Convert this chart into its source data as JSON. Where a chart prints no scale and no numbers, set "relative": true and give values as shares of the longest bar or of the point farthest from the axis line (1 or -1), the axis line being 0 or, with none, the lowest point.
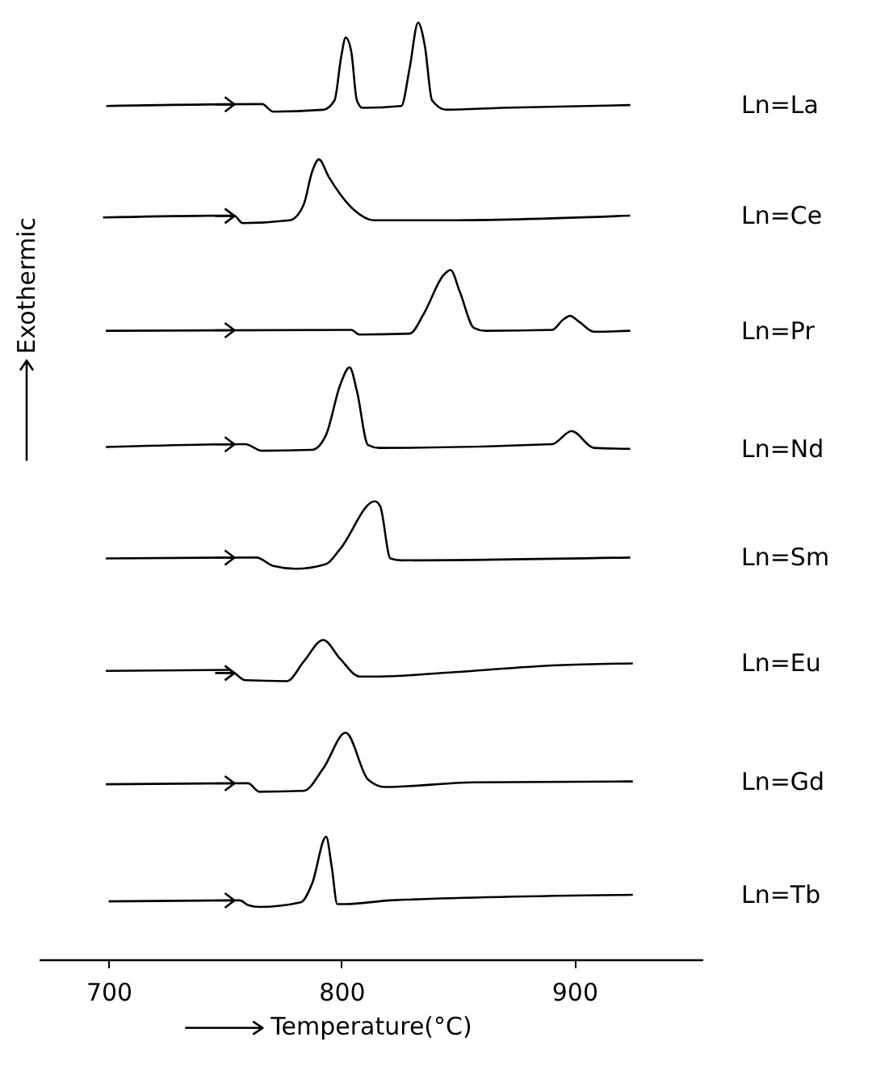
{
  "chart_data": {
    "type": "line",
    "relative": true,
    "xlabel": "Temperature(°C)",
    "ylabel": "Exothermic",
    "xlim": [
      670,
      955
    ],
    "xticks": [
      700,
      800,
      900
    ],
    "grid": false,
    "series": [
      {
        "name": "Ln=La",
        "color": "#000000",
        "x": [
          699,
          765.9,
          770.7,
          792.2,
          797,
          799.9,
          801.8,
          804.2,
          806.6,
          809,
          825.7,
          829.3,
          832.9,
          835.8,
          838.9,
          844.9,
          868.9,
          924
        ],
        "values": [
          0.911,
          0.913,
          0.905,
          0.907,
          0.917,
          0.964,
          0.984,
          0.969,
          0.917,
          0.909,
          0.911,
          0.952,
          1.0,
          0.975,
          0.917,
          0.907,
          0.909,
          0.912
        ]
      },
      {
        "name": "Ln=Ce",
        "color": "#000000",
        "x": [
          697.6,
          753.9,
          757.5,
          777.8,
          783.8,
          787.4,
          790.3,
          794.6,
          805.4,
          813.8,
          844.9,
          924
        ],
        "values": [
          0.792,
          0.794,
          0.786,
          0.789,
          0.806,
          0.841,
          0.854,
          0.835,
          0.8,
          0.789,
          0.789,
          0.794
        ]
      },
      {
        "name": "Ln=Pr",
        "color": "#000000",
        "x": [
          698.8,
          804.2,
          807.8,
          829.3,
          835.3,
          843.7,
          846.8,
          850.9,
          856.9,
          861.7,
          890.4,
          895.2,
          898.1,
          902.4,
          908.4,
          924
        ],
        "values": [
          0.671,
          0.672,
          0.667,
          0.668,
          0.689,
          0.73,
          0.736,
          0.712,
          0.674,
          0.671,
          0.672,
          0.683,
          0.687,
          0.68,
          0.67,
          0.671
        ]
      },
      {
        "name": "Ln=Nd",
        "color": "#000000",
        "x": [
          698.8,
          758.7,
          765.9,
          787.4,
          793.4,
          799.4,
          803.5,
          806.6,
          811.4,
          816.2,
          890.4,
          898.8,
          908.4,
          924
        ],
        "values": [
          0.547,
          0.55,
          0.543,
          0.544,
          0.56,
          0.613,
          0.632,
          0.607,
          0.549,
          0.546,
          0.55,
          0.564,
          0.546,
          0.545
        ]
      },
      {
        "name": "Ln=Sm",
        "color": "#000000",
        "x": [
          698.8,
          763.5,
          770.7,
          780.2,
          793.4,
          799.4,
          814.3,
          816.6,
          821,
          825.7,
          924
        ],
        "values": [
          0.428,
          0.429,
          0.42,
          0.417,
          0.422,
          0.438,
          0.489,
          0.484,
          0.428,
          0.426,
          0.429
        ]
      },
      {
        "name": "Ln=Eu",
        "color": "#000000",
        "x": [
          698.8,
          751.5,
          753.9,
          758.7,
          776.6,
          783.8,
          792.2,
          799.4,
          807.8,
          816.2,
          844.9,
          892.8,
          925.1
        ],
        "values": [
          0.308,
          0.309,
          0.306,
          0.298,
          0.297,
          0.318,
          0.341,
          0.321,
          0.302,
          0.302,
          0.306,
          0.314,
          0.316
        ]
      },
      {
        "name": "Ln=Gd",
        "color": "#000000",
        "x": [
          698.8,
          759.9,
          764.7,
          783.8,
          792.2,
          801.8,
          811.4,
          818.6,
          856.9,
          925.1
        ],
        "values": [
          0.187,
          0.188,
          0.179,
          0.18,
          0.204,
          0.242,
          0.192,
          0.184,
          0.189,
          0.19
        ]
      },
      {
        "name": "Ln=Tb",
        "color": "#000000",
        "x": [
          700,
          756.3,
          759.9,
          764.7,
          782.6,
          787.4,
          793.4,
          795.8,
          798.2,
          801.8,
          821,
          925.1
        ],
        "values": [
          0.062,
          0.063,
          0.058,
          0.056,
          0.061,
          0.081,
          0.131,
          0.099,
          0.059,
          0.059,
          0.063,
          0.069
        ]
      }
    ]
  }
}
